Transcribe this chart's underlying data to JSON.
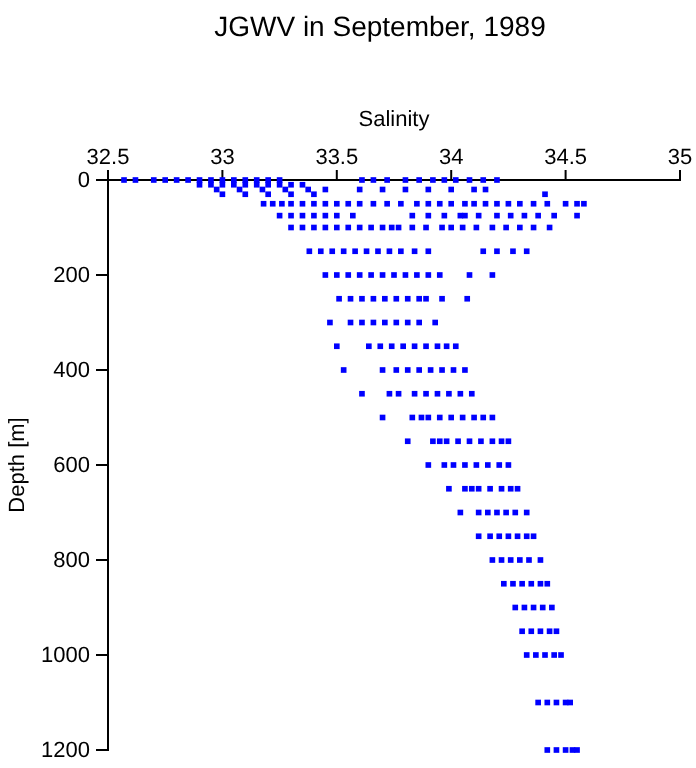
{
  "chart_data": {
    "type": "scatter",
    "title": "JGWV in September, 1989",
    "xlabel": "Salinity",
    "ylabel": "Depth [m]",
    "xlim": [
      32.5,
      35
    ],
    "xticks": [
      32.5,
      33,
      33.5,
      34,
      34.5,
      35
    ],
    "ylim": [
      1200,
      0
    ],
    "yticks": [
      0,
      200,
      400,
      600,
      800,
      1000,
      1200
    ],
    "marker": "square",
    "grid": false,
    "series": [
      {
        "color": "#0000ff",
        "x": [
          32.57,
          32.62,
          32.7,
          32.75,
          32.8,
          32.85,
          32.9,
          32.95,
          33.0,
          33.05,
          33.1,
          33.15,
          33.2,
          33.25,
          33.61,
          33.66,
          33.72,
          33.8,
          33.86,
          33.92,
          33.97,
          34.02,
          34.08,
          34.14,
          34.2
        ],
        "values": [
          0,
          0,
          0,
          0,
          0,
          0,
          0,
          0,
          0,
          0,
          0,
          0,
          0,
          0,
          0,
          0,
          0,
          0,
          0,
          0,
          0,
          0,
          0,
          0,
          0
        ]
      },
      {
        "color": "#0000ff",
        "x": [
          32.9,
          32.95,
          33.0,
          33.05,
          33.1,
          33.15,
          33.2,
          33.25,
          33.3,
          33.35
        ],
        "values": [
          10,
          10,
          10,
          10,
          10,
          10,
          10,
          10,
          10,
          10
        ]
      },
      {
        "color": "#0000ff",
        "x": [
          32.975,
          33.075,
          33.175,
          33.275,
          33.375,
          33.45,
          33.6,
          33.7,
          33.8,
          33.9,
          34.0,
          34.1,
          34.15
        ],
        "values": [
          20,
          20,
          20,
          20,
          20,
          20,
          20,
          20,
          20,
          20,
          20,
          20,
          20
        ]
      },
      {
        "color": "#0000ff",
        "x": [
          33.0,
          33.1,
          33.2,
          33.3,
          33.4,
          34.41
        ],
        "values": [
          30,
          30,
          30,
          30,
          30,
          30
        ]
      },
      {
        "color": "#0000ff",
        "x": [
          33.18,
          33.22,
          33.26,
          33.3,
          33.35,
          33.4,
          33.45,
          33.5,
          33.55,
          33.6,
          33.66,
          33.72,
          33.78,
          33.85,
          33.9,
          33.95,
          34.0,
          34.06,
          34.1,
          34.15,
          34.2,
          34.25,
          34.3,
          34.36,
          34.42,
          34.5,
          34.55,
          34.58
        ],
        "values": [
          50,
          50,
          50,
          50,
          50,
          50,
          50,
          50,
          50,
          50,
          50,
          50,
          50,
          50,
          50,
          50,
          50,
          50,
          50,
          50,
          50,
          50,
          50,
          50,
          50,
          50,
          50,
          50
        ]
      },
      {
        "color": "#0000ff",
        "x": [
          33.25,
          33.3,
          33.35,
          33.4,
          33.45,
          33.5,
          33.57,
          33.83,
          33.9,
          33.97,
          34.04,
          34.06,
          34.12,
          34.2,
          34.26,
          34.32,
          34.38,
          34.45,
          34.55
        ],
        "values": [
          75,
          75,
          75,
          75,
          75,
          75,
          75,
          75,
          75,
          75,
          75,
          75,
          75,
          75,
          75,
          75,
          75,
          75,
          75
        ]
      },
      {
        "color": "#0000ff",
        "x": [
          33.3,
          33.35,
          33.4,
          33.45,
          33.5,
          33.55,
          33.6,
          33.65,
          33.7,
          33.74,
          33.77,
          33.83,
          33.89,
          33.96,
          34.0,
          34.05,
          34.11,
          34.18,
          34.24,
          34.3,
          34.36,
          34.43
        ],
        "values": [
          100,
          100,
          100,
          100,
          100,
          100,
          100,
          100,
          100,
          100,
          100,
          100,
          100,
          100,
          100,
          100,
          100,
          100,
          100,
          100,
          100,
          100
        ]
      },
      {
        "color": "#0000ff",
        "x": [
          33.38,
          33.43,
          33.48,
          33.53,
          33.58,
          33.63,
          33.68,
          33.73,
          33.78,
          33.84,
          33.9,
          34.14,
          34.2,
          34.27,
          34.33
        ],
        "values": [
          150,
          150,
          150,
          150,
          150,
          150,
          150,
          150,
          150,
          150,
          150,
          150,
          150,
          150,
          150
        ]
      },
      {
        "color": "#0000ff",
        "x": [
          33.45,
          33.5,
          33.55,
          33.6,
          33.65,
          33.7,
          33.75,
          33.8,
          33.85,
          33.9,
          33.95,
          34.08,
          34.18
        ],
        "values": [
          200,
          200,
          200,
          200,
          200,
          200,
          200,
          200,
          200,
          200,
          200,
          200,
          200
        ]
      },
      {
        "color": "#0000ff",
        "x": [
          33.51,
          33.56,
          33.61,
          33.66,
          33.71,
          33.76,
          33.81,
          33.86,
          33.89,
          33.96,
          34.07
        ],
        "values": [
          250,
          250,
          250,
          250,
          250,
          250,
          250,
          250,
          250,
          250,
          250
        ]
      },
      {
        "color": "#0000ff",
        "x": [
          33.47,
          33.56,
          33.61,
          33.66,
          33.71,
          33.76,
          33.81,
          33.86,
          33.93
        ],
        "values": [
          300,
          300,
          300,
          300,
          300,
          300,
          300,
          300,
          300
        ]
      },
      {
        "color": "#0000ff",
        "x": [
          33.5,
          33.64,
          33.69,
          33.74,
          33.79,
          33.84,
          33.89,
          33.94,
          33.98,
          34.02
        ],
        "values": [
          350,
          350,
          350,
          350,
          350,
          350,
          350,
          350,
          350,
          350
        ]
      },
      {
        "color": "#0000ff",
        "x": [
          33.53,
          33.7,
          33.76,
          33.81,
          33.86,
          33.91,
          33.96,
          34.01,
          34.06
        ],
        "values": [
          400,
          400,
          400,
          400,
          400,
          400,
          400,
          400,
          400
        ]
      },
      {
        "color": "#0000ff",
        "x": [
          33.61,
          33.73,
          33.77,
          33.84,
          33.89,
          33.94,
          33.99,
          34.04,
          34.09
        ],
        "values": [
          450,
          450,
          450,
          450,
          450,
          450,
          450,
          450,
          450
        ]
      },
      {
        "color": "#0000ff",
        "x": [
          33.7,
          33.83,
          33.87,
          33.9,
          33.95,
          34.0,
          34.05,
          34.1,
          34.14,
          34.18
        ],
        "values": [
          500,
          500,
          500,
          500,
          500,
          500,
          500,
          500,
          500,
          500
        ]
      },
      {
        "color": "#0000ff",
        "x": [
          33.81,
          33.92,
          33.95,
          33.98,
          34.03,
          34.08,
          34.13,
          34.18,
          34.22,
          34.25
        ],
        "values": [
          550,
          550,
          550,
          550,
          550,
          550,
          550,
          550,
          550,
          550
        ]
      },
      {
        "color": "#0000ff",
        "x": [
          33.9,
          33.97,
          34.01,
          34.06,
          34.11,
          34.16,
          34.21,
          34.25
        ],
        "values": [
          600,
          600,
          600,
          600,
          600,
          600,
          600,
          600
        ]
      },
      {
        "color": "#0000ff",
        "x": [
          33.99,
          34.06,
          34.09,
          34.12,
          34.17,
          34.22,
          34.26,
          34.29
        ],
        "values": [
          650,
          650,
          650,
          650,
          650,
          650,
          650,
          650
        ]
      },
      {
        "color": "#0000ff",
        "x": [
          34.04,
          34.12,
          34.16,
          34.2,
          34.24,
          34.28,
          34.33
        ],
        "values": [
          700,
          700,
          700,
          700,
          700,
          700,
          700
        ]
      },
      {
        "color": "#0000ff",
        "x": [
          34.12,
          34.17,
          34.21,
          34.25,
          34.29,
          34.33,
          34.36
        ],
        "values": [
          750,
          750,
          750,
          750,
          750,
          750,
          750
        ]
      },
      {
        "color": "#0000ff",
        "x": [
          34.18,
          34.22,
          34.26,
          34.3,
          34.34,
          34.39
        ],
        "values": [
          800,
          800,
          800,
          800,
          800,
          800
        ]
      },
      {
        "color": "#0000ff",
        "x": [
          34.23,
          34.27,
          34.31,
          34.35,
          34.39,
          34.42
        ],
        "values": [
          850,
          850,
          850,
          850,
          850,
          850
        ]
      },
      {
        "color": "#0000ff",
        "x": [
          34.28,
          34.32,
          34.36,
          34.4,
          34.44
        ],
        "values": [
          900,
          900,
          900,
          900,
          900
        ]
      },
      {
        "color": "#0000ff",
        "x": [
          34.31,
          34.35,
          34.39,
          34.43,
          34.46
        ],
        "values": [
          950,
          950,
          950,
          950,
          950
        ]
      },
      {
        "color": "#0000ff",
        "x": [
          34.33,
          34.37,
          34.41,
          34.45,
          34.48
        ],
        "values": [
          1000,
          1000,
          1000,
          1000,
          1000
        ]
      },
      {
        "color": "#0000ff",
        "x": [
          34.38,
          34.42,
          34.46,
          34.5,
          34.52
        ],
        "values": [
          1100,
          1100,
          1100,
          1100,
          1100
        ]
      },
      {
        "color": "#0000ff",
        "x": [
          34.42,
          34.46,
          34.5,
          34.53,
          34.55
        ],
        "values": [
          1200,
          1200,
          1200,
          1200,
          1200
        ]
      }
    ]
  }
}
